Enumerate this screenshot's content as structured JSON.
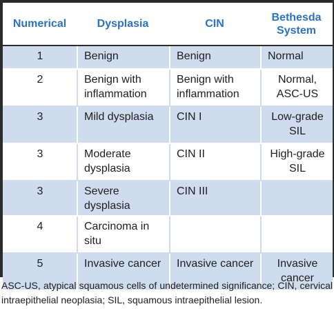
{
  "table": {
    "headers": [
      "Numerical",
      "Dysplasia",
      "CIN",
      "Bethesda System"
    ],
    "rows": [
      [
        "1",
        "Benign",
        "Benign",
        "Normal"
      ],
      [
        "2",
        "Benign with inflammation",
        "Benign with inflammation",
        "Normal, ASC-US"
      ],
      [
        "3",
        "Mild dysplasia",
        "CIN I",
        "Low-grade SIL"
      ],
      [
        "3",
        "Moderate dysplasia",
        "CIN II",
        "High-grade SIL"
      ],
      [
        "3",
        "Severe dysplasia",
        "CIN III",
        ""
      ],
      [
        "4",
        "Carcinoma in situ",
        "",
        ""
      ],
      [
        "5",
        "Invasive cancer",
        "Invasive cancer",
        "Invasive cancer"
      ]
    ]
  },
  "footnote": "ASC-US, atypical squamous cells of undetermined significance; CIN, cervical intraepithelial neoplasia; SIL, squamous intraepithelial lesion.",
  "colors": {
    "header_text": "#2b72c4",
    "band_fill": "#cfdcee",
    "frame": "#2b2b2b"
  }
}
